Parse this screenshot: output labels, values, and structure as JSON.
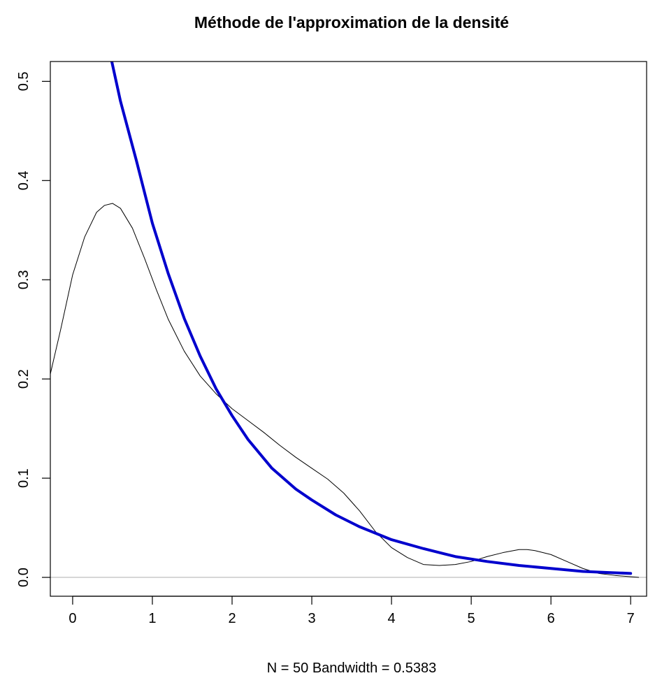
{
  "chart_data": {
    "type": "line",
    "title": "Méthode de l'approximation de la densité",
    "subtitle": "",
    "xlabel": "N = 50   Bandwidth = 0.5383",
    "ylabel": "",
    "xlim": [
      -0.28,
      7.2
    ],
    "ylim": [
      -0.019,
      0.52
    ],
    "x_ticks": [
      0,
      1,
      2,
      3,
      4,
      5,
      6,
      7
    ],
    "x_tick_labels": [
      "0",
      "1",
      "2",
      "3",
      "4",
      "5",
      "6",
      "7"
    ],
    "y_ticks": [
      0.0,
      0.1,
      0.2,
      0.3,
      0.4,
      0.5
    ],
    "y_tick_labels": [
      "0.0",
      "0.1",
      "0.2",
      "0.3",
      "0.4",
      "0.5"
    ],
    "reference_line": {
      "y": 0.0,
      "color": "#bebebe"
    },
    "grid": false,
    "legend": "none",
    "series": [
      {
        "color": "#000000",
        "line_width": 1,
        "x": [
          -0.28,
          -0.15,
          0.0,
          0.15,
          0.3,
          0.4,
          0.5,
          0.6,
          0.75,
          0.9,
          1.05,
          1.2,
          1.4,
          1.6,
          1.8,
          2.0,
          2.2,
          2.4,
          2.6,
          2.8,
          3.0,
          3.2,
          3.4,
          3.6,
          3.8,
          4.0,
          4.2,
          4.4,
          4.6,
          4.8,
          5.0,
          5.2,
          5.4,
          5.6,
          5.7,
          5.8,
          6.0,
          6.2,
          6.4,
          6.6,
          6.8,
          7.1
        ],
        "y": [
          0.205,
          0.25,
          0.305,
          0.343,
          0.368,
          0.375,
          0.377,
          0.372,
          0.352,
          0.322,
          0.29,
          0.26,
          0.228,
          0.203,
          0.185,
          0.17,
          0.158,
          0.146,
          0.133,
          0.121,
          0.11,
          0.099,
          0.085,
          0.067,
          0.046,
          0.03,
          0.02,
          0.013,
          0.012,
          0.013,
          0.016,
          0.021,
          0.025,
          0.028,
          0.028,
          0.027,
          0.023,
          0.016,
          0.009,
          0.004,
          0.002,
          0.0
        ]
      },
      {
        "color": "#0000cd",
        "line_width": 4,
        "x": [
          0.48,
          0.6,
          0.8,
          1.0,
          1.2,
          1.4,
          1.6,
          1.8,
          2.0,
          2.2,
          2.5,
          2.8,
          3.0,
          3.3,
          3.6,
          4.0,
          4.4,
          4.8,
          5.2,
          5.6,
          6.0,
          6.4,
          6.7,
          7.0
        ],
        "y": [
          0.524,
          0.48,
          0.42,
          0.357,
          0.306,
          0.261,
          0.223,
          0.19,
          0.163,
          0.139,
          0.11,
          0.089,
          0.078,
          0.063,
          0.051,
          0.038,
          0.029,
          0.021,
          0.016,
          0.012,
          0.009,
          0.006,
          0.005,
          0.004
        ]
      }
    ]
  }
}
